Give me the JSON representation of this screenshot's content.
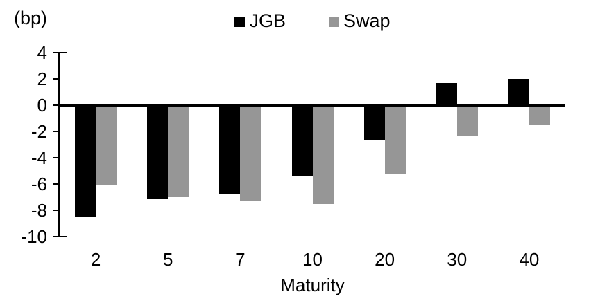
{
  "chart_data": {
    "type": "bar",
    "unit_label": "(bp)",
    "xlabel": "Maturity",
    "categories": [
      "2",
      "5",
      "7",
      "10",
      "20",
      "30",
      "40"
    ],
    "series": [
      {
        "name": "JGB",
        "color": "#000000",
        "values": [
          -8.5,
          -7.1,
          -6.8,
          -5.4,
          -2.7,
          1.7,
          2.0
        ]
      },
      {
        "name": "Swap",
        "color": "#969696",
        "values": [
          -6.1,
          -7.0,
          -7.3,
          -7.5,
          -5.2,
          -2.3,
          -1.5
        ]
      }
    ],
    "y_ticks": [
      4,
      2,
      0,
      -2,
      -4,
      -6,
      -8,
      -10
    ],
    "ylim": [
      -10,
      4
    ],
    "grid": false,
    "legend_position": "top-center",
    "axis_color": "#000000",
    "background_color": "#ffffff"
  }
}
